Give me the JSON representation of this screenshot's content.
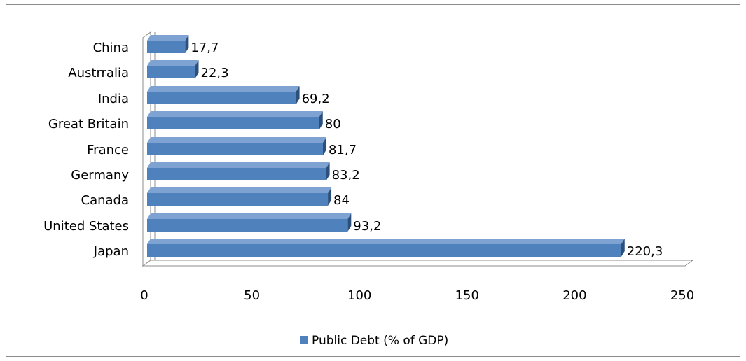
{
  "chart_data": {
    "type": "bar",
    "orientation": "horizontal",
    "categories": [
      "Japan",
      "United States",
      "Canada",
      "Germany",
      "France",
      "Great Britain",
      "India",
      "Austrralia",
      "China"
    ],
    "series": [
      {
        "name": "Public Debt (% of GDP)",
        "values": [
          220.3,
          93.2,
          84,
          83.2,
          81.7,
          80,
          69.2,
          22.3,
          17.7
        ]
      }
    ],
    "value_labels": [
      "220,3",
      "93,2",
      "84",
      "83,2",
      "81,7",
      "80",
      "69,2",
      "22,3",
      "17,7"
    ],
    "xlim": [
      0,
      250
    ],
    "xticks": [
      0,
      50,
      100,
      150,
      200,
      250
    ],
    "xtick_labels": [
      "0",
      "50",
      "100",
      "150",
      "200",
      "250"
    ],
    "title": "",
    "xlabel": "",
    "ylabel": "",
    "grid": false,
    "legend_position": "bottom",
    "colors": {
      "bar_front": "#4f81bd",
      "bar_top": "#7ea3d3",
      "bar_side": "#2c4f7c",
      "axis": "#8c8c8c"
    }
  }
}
